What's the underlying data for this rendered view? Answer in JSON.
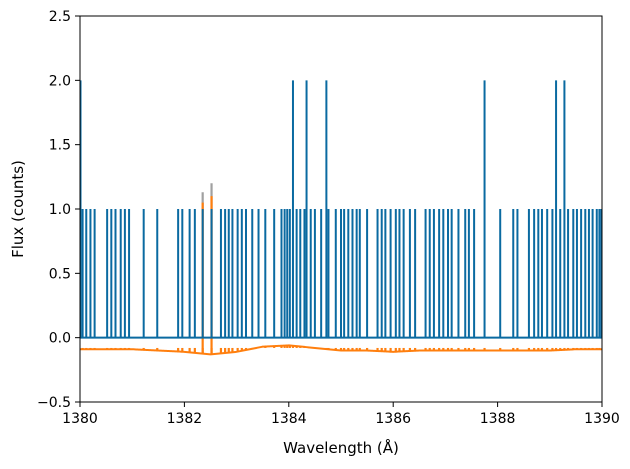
{
  "chart_data": {
    "type": "line",
    "title": "",
    "xlabel": "Wavelength (Å)",
    "ylabel": "Flux (counts)",
    "xlim": [
      1380,
      1390
    ],
    "ylim": [
      -0.5,
      2.5
    ],
    "xticks": [
      1380,
      1382,
      1384,
      1386,
      1388,
      1390
    ],
    "xtick_labels": [
      "1380",
      "1382",
      "1384",
      "1386",
      "1388",
      "1390"
    ],
    "yticks": [
      -0.5,
      0.0,
      0.5,
      1.0,
      1.5,
      2.0,
      2.5
    ],
    "ytick_labels": [
      "−0.5",
      "0.0",
      "0.5",
      "1.0",
      "1.5",
      "2.0",
      "2.5"
    ],
    "grid": false,
    "legend": "none",
    "series": [
      {
        "color": "#a0a0a0",
        "style": "spikes",
        "baseline": 0.0,
        "spikes": [
          [
            1382.35,
            1.13
          ],
          [
            1382.52,
            1.2
          ]
        ]
      },
      {
        "color": "#ff7f0e",
        "style": "background",
        "x": [
          1380.0,
          1380.5,
          1381.0,
          1381.5,
          1382.0,
          1382.5,
          1383.0,
          1383.5,
          1384.0,
          1384.5,
          1385.0,
          1385.5,
          1386.0,
          1386.5,
          1387.0,
          1387.5,
          1388.0,
          1388.5,
          1389.0,
          1389.5,
          1390.0
        ],
        "y": [
          -0.09,
          -0.09,
          -0.09,
          -0.1,
          -0.11,
          -0.13,
          -0.11,
          -0.07,
          -0.06,
          -0.08,
          -0.1,
          -0.1,
          -0.11,
          -0.1,
          -0.1,
          -0.1,
          -0.1,
          -0.1,
          -0.1,
          -0.09,
          -0.09
        ],
        "drop_level": -0.08,
        "rise_spikes": [
          [
            1382.35,
            1.05
          ],
          [
            1382.52,
            1.1
          ]
        ]
      },
      {
        "color": "#0a6aa1",
        "style": "spikes",
        "baseline": 0.0,
        "spikes": [
          [
            1380.05,
            1.0
          ],
          [
            1380.12,
            1.0
          ],
          [
            1380.2,
            1.0
          ],
          [
            1380.28,
            1.0
          ],
          [
            1380.52,
            1.0
          ],
          [
            1380.6,
            1.0
          ],
          [
            1380.68,
            1.0
          ],
          [
            1380.78,
            1.0
          ],
          [
            1380.86,
            1.0
          ],
          [
            1380.94,
            1.0
          ],
          [
            1381.22,
            1.0
          ],
          [
            1381.48,
            1.0
          ],
          [
            1381.88,
            1.0
          ],
          [
            1381.96,
            1.0
          ],
          [
            1382.1,
            1.0
          ],
          [
            1382.2,
            1.0
          ],
          [
            1382.35,
            1.0
          ],
          [
            1382.52,
            1.0
          ],
          [
            1382.7,
            1.0
          ],
          [
            1382.78,
            1.0
          ],
          [
            1382.85,
            1.0
          ],
          [
            1382.92,
            1.0
          ],
          [
            1383.02,
            1.0
          ],
          [
            1383.1,
            1.0
          ],
          [
            1383.18,
            1.0
          ],
          [
            1383.3,
            1.0
          ],
          [
            1383.42,
            1.0
          ],
          [
            1383.55,
            1.0
          ],
          [
            1383.72,
            1.0
          ],
          [
            1383.86,
            1.0
          ],
          [
            1383.92,
            1.0
          ],
          [
            1383.97,
            1.0
          ],
          [
            1384.02,
            1.0
          ],
          [
            1384.08,
            2.0
          ],
          [
            1384.15,
            1.0
          ],
          [
            1384.22,
            1.0
          ],
          [
            1384.3,
            1.0
          ],
          [
            1384.34,
            2.0
          ],
          [
            1384.42,
            1.0
          ],
          [
            1384.5,
            1.0
          ],
          [
            1384.62,
            1.0
          ],
          [
            1384.72,
            2.0
          ],
          [
            1384.76,
            1.0
          ],
          [
            1384.9,
            1.0
          ],
          [
            1385.0,
            1.0
          ],
          [
            1385.06,
            1.0
          ],
          [
            1385.14,
            1.0
          ],
          [
            1385.22,
            1.0
          ],
          [
            1385.3,
            1.0
          ],
          [
            1385.36,
            1.0
          ],
          [
            1385.5,
            1.0
          ],
          [
            1385.7,
            1.0
          ],
          [
            1385.78,
            1.0
          ],
          [
            1385.85,
            1.0
          ],
          [
            1385.95,
            1.0
          ],
          [
            1386.05,
            1.0
          ],
          [
            1386.12,
            1.0
          ],
          [
            1386.2,
            1.0
          ],
          [
            1386.32,
            1.0
          ],
          [
            1386.42,
            1.0
          ],
          [
            1386.62,
            1.0
          ],
          [
            1386.7,
            1.0
          ],
          [
            1386.78,
            1.0
          ],
          [
            1386.88,
            1.0
          ],
          [
            1386.96,
            1.0
          ],
          [
            1387.05,
            1.0
          ],
          [
            1387.12,
            1.0
          ],
          [
            1387.25,
            1.0
          ],
          [
            1387.38,
            1.0
          ],
          [
            1387.45,
            1.0
          ],
          [
            1387.55,
            1.0
          ],
          [
            1387.75,
            2.0
          ],
          [
            1388.05,
            1.0
          ],
          [
            1388.3,
            1.0
          ],
          [
            1388.38,
            1.0
          ],
          [
            1388.6,
            1.0
          ],
          [
            1388.7,
            1.0
          ],
          [
            1388.78,
            1.0
          ],
          [
            1388.85,
            1.0
          ],
          [
            1388.95,
            1.0
          ],
          [
            1389.05,
            1.0
          ],
          [
            1389.12,
            2.0
          ],
          [
            1389.2,
            1.0
          ],
          [
            1389.28,
            2.0
          ],
          [
            1389.35,
            1.0
          ],
          [
            1389.45,
            1.0
          ],
          [
            1389.52,
            1.0
          ],
          [
            1389.6,
            1.0
          ],
          [
            1389.68,
            1.0
          ],
          [
            1389.75,
            1.0
          ],
          [
            1389.82,
            1.0
          ],
          [
            1389.9,
            1.0
          ],
          [
            1389.95,
            1.0
          ]
        ]
      }
    ]
  }
}
